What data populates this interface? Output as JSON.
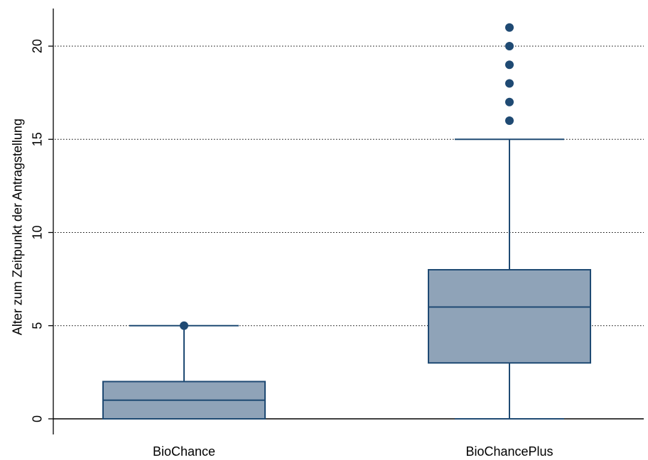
{
  "chart_data": {
    "type": "box",
    "ylabel": "Alter zum Zeitpunkt der Antragstellung",
    "ylim": [
      -1.2,
      21.8
    ],
    "yticks": [
      0,
      5,
      10,
      15,
      20
    ],
    "grid": true,
    "colors": {
      "box_fill": "#8fa3b8",
      "box_line": "#1f4a73",
      "outlier": "#1f4a73",
      "grid": "#000000",
      "axis": "#000000"
    },
    "boxes": [
      {
        "category": "BioChance",
        "whisker_low": 0,
        "q1": 0,
        "median": 1,
        "q3": 2,
        "whisker_high": 5,
        "outliers": [
          5
        ]
      },
      {
        "category": "BioChancePlus",
        "whisker_low": 0,
        "q1": 3,
        "median": 6,
        "q3": 8,
        "whisker_high": 15,
        "outliers": [
          16,
          17,
          18,
          19,
          20,
          21
        ]
      }
    ]
  }
}
